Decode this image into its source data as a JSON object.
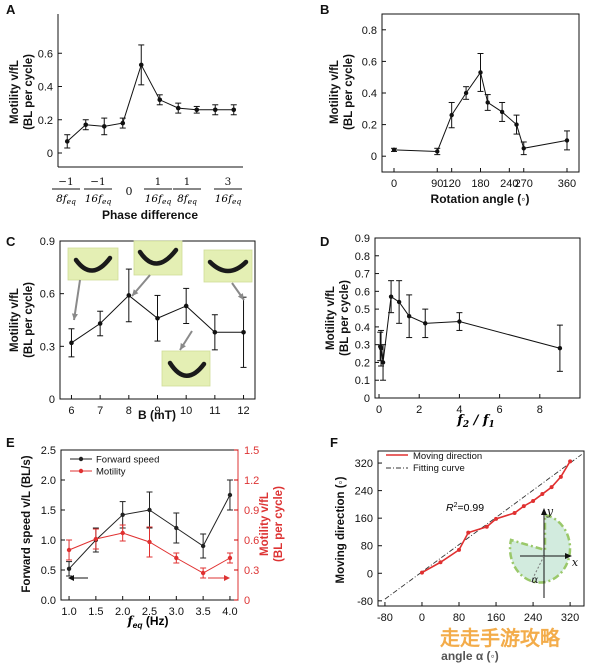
{
  "chart_data": [
    {
      "panel": "A",
      "type": "line",
      "xlabel": "Phase difference",
      "ylabel": [
        "Motility v/fL",
        "(BL per cycle)"
      ],
      "ylim": [
        0,
        0.8
      ],
      "yticks": [
        "0",
        "0.2",
        "0.4",
        "0.6"
      ],
      "categories": [
        "−1/8f_eq",
        "−1/16f_eq",
        "0",
        "1/16f_eq",
        "1/8f_eq",
        "3/16f_eq"
      ],
      "x": [
        0,
        1,
        2,
        3,
        4,
        5,
        6,
        7,
        8,
        9
      ],
      "y": [
        0.07,
        0.17,
        0.16,
        0.18,
        0.53,
        0.32,
        0.27,
        0.26,
        0.26,
        0.26
      ],
      "err": [
        0.04,
        0.03,
        0.05,
        0.03,
        0.12,
        0.03,
        0.03,
        0.02,
        0.03,
        0.03
      ]
    },
    {
      "panel": "B",
      "type": "line",
      "xlabel": "Rotation angle (◦)",
      "ylabel": [
        "Motility v/fL",
        "(BL per cycle)"
      ],
      "xlim": [
        -25,
        385
      ],
      "ylim": [
        -0.1,
        0.9
      ],
      "xticks": [
        "0",
        "90",
        "120",
        "180",
        "240",
        "270",
        "360"
      ],
      "yticks": [
        "0",
        "0.2",
        "0.4",
        "0.6",
        "0.8"
      ],
      "x": [
        0,
        90,
        120,
        150,
        180,
        195,
        225,
        255,
        270,
        360
      ],
      "y": [
        0.04,
        0.03,
        0.26,
        0.4,
        0.53,
        0.34,
        0.28,
        0.2,
        0.05,
        0.1
      ],
      "err": [
        0.01,
        0.02,
        0.08,
        0.04,
        0.12,
        0.05,
        0.06,
        0.06,
        0.04,
        0.06
      ]
    },
    {
      "panel": "C",
      "type": "line",
      "xlabel": "B (mT)",
      "ylabel": [
        "Motility v/fL",
        "(BL per cycle)"
      ],
      "xlim": [
        5.6,
        12.4
      ],
      "ylim": [
        0,
        0.9
      ],
      "xticks": [
        "6",
        "7",
        "8",
        "9",
        "10",
        "11",
        "12"
      ],
      "yticks": [
        "0",
        "0.3",
        "0.6",
        "0.9"
      ],
      "x": [
        6,
        7,
        8,
        9,
        10,
        11,
        12
      ],
      "y": [
        0.32,
        0.43,
        0.59,
        0.46,
        0.53,
        0.38,
        0.38
      ],
      "err": [
        0.08,
        0.07,
        0.15,
        0.13,
        0.1,
        0.1,
        0.2
      ]
    },
    {
      "panel": "D",
      "type": "line",
      "xlabel": "f2/f1",
      "ylabel": [
        "Motility v/fL",
        "(BL per cycle)"
      ],
      "xlim": [
        -0.2,
        10
      ],
      "ylim": [
        0,
        0.9
      ],
      "xticks": [
        "0",
        "2",
        "4",
        "6",
        "8"
      ],
      "yticks": [
        "0",
        "0.1",
        "0.2",
        "0.3",
        "0.4",
        "0.5",
        "0.6",
        "0.7",
        "0.8",
        "0.9"
      ],
      "x": [
        0.06,
        0.1,
        0.2,
        0.6,
        1,
        1.5,
        2.3,
        4,
        9
      ],
      "y": [
        0.29,
        0.28,
        0.2,
        0.57,
        0.54,
        0.46,
        0.42,
        0.43,
        0.28
      ],
      "err": [
        0.08,
        0.1,
        0.1,
        0.09,
        0.12,
        0.12,
        0.08,
        0.05,
        0.13
      ]
    },
    {
      "panel": "E",
      "type": "line",
      "xlabel": "f_eq (Hz)",
      "ylabel": [
        "Forward speed v/L (BL/s)"
      ],
      "ylabel_right": [
        "Motility v/fL",
        "(BL per cycle)"
      ],
      "xlim": [
        0.85,
        4.15
      ],
      "ylim": [
        0,
        2.5
      ],
      "ylim_right": [
        0,
        1.5
      ],
      "xticks": [
        "1.0",
        "1.5",
        "2.0",
        "2.5",
        "3.0",
        "3.5",
        "4.0"
      ],
      "yticks": [
        "0.0",
        "0.5",
        "1.0",
        "1.5",
        "2.0",
        "2.5"
      ],
      "yticks_right": [
        "0",
        "0.3",
        "0.6",
        "0.9",
        "1.2",
        "1.5"
      ],
      "x": [
        1,
        1.5,
        2,
        2.5,
        3,
        3.5,
        4
      ],
      "series": [
        {
          "name": "Forward speed",
          "axis": "left",
          "color": "#222222",
          "values": [
            0.52,
            1.0,
            1.42,
            1.5,
            1.2,
            0.9,
            1.75
          ],
          "err": [
            0.12,
            0.2,
            0.22,
            0.3,
            0.25,
            0.2,
            0.25
          ]
        },
        {
          "name": "Motility",
          "axis": "right",
          "color": "#e03030",
          "values": [
            0.5,
            0.61,
            0.67,
            0.58,
            0.42,
            0.27,
            0.42
          ],
          "err": [
            0.1,
            0.1,
            0.08,
            0.15,
            0.05,
            0.05,
            0.05
          ]
        }
      ],
      "legend": "top-left"
    },
    {
      "panel": "F",
      "type": "line",
      "xlabel": "angle α (◦)",
      "ylabel": [
        "Moving direction (◦)"
      ],
      "xlim": [
        -95,
        350
      ],
      "ylim": [
        -95,
        355
      ],
      "xticks": [
        "-80",
        "0",
        "80",
        "160",
        "240",
        "320"
      ],
      "yticks": [
        "-80",
        "0",
        "80",
        "160",
        "240",
        "320"
      ],
      "x": [
        0,
        40,
        80,
        100,
        140,
        160,
        200,
        220,
        240,
        260,
        280,
        300,
        320
      ],
      "series": [
        {
          "name": "Moving direction",
          "color": "#e03030",
          "values": [
            2,
            32,
            68,
            118,
            135,
            158,
            175,
            195,
            210,
            230,
            250,
            280,
            325
          ]
        },
        {
          "name": "Fitting curve",
          "color": "#333333",
          "fit": [
            -80,
            -75,
            345,
            345
          ]
        }
      ],
      "annotation": "R2=0.99",
      "legend": "top-left",
      "inset_axes": [
        "y",
        "x",
        "α"
      ]
    }
  ],
  "panel_labels": [
    "A",
    "B",
    "C",
    "D",
    "E",
    "F"
  ],
  "watermark": "走走手游攻略"
}
